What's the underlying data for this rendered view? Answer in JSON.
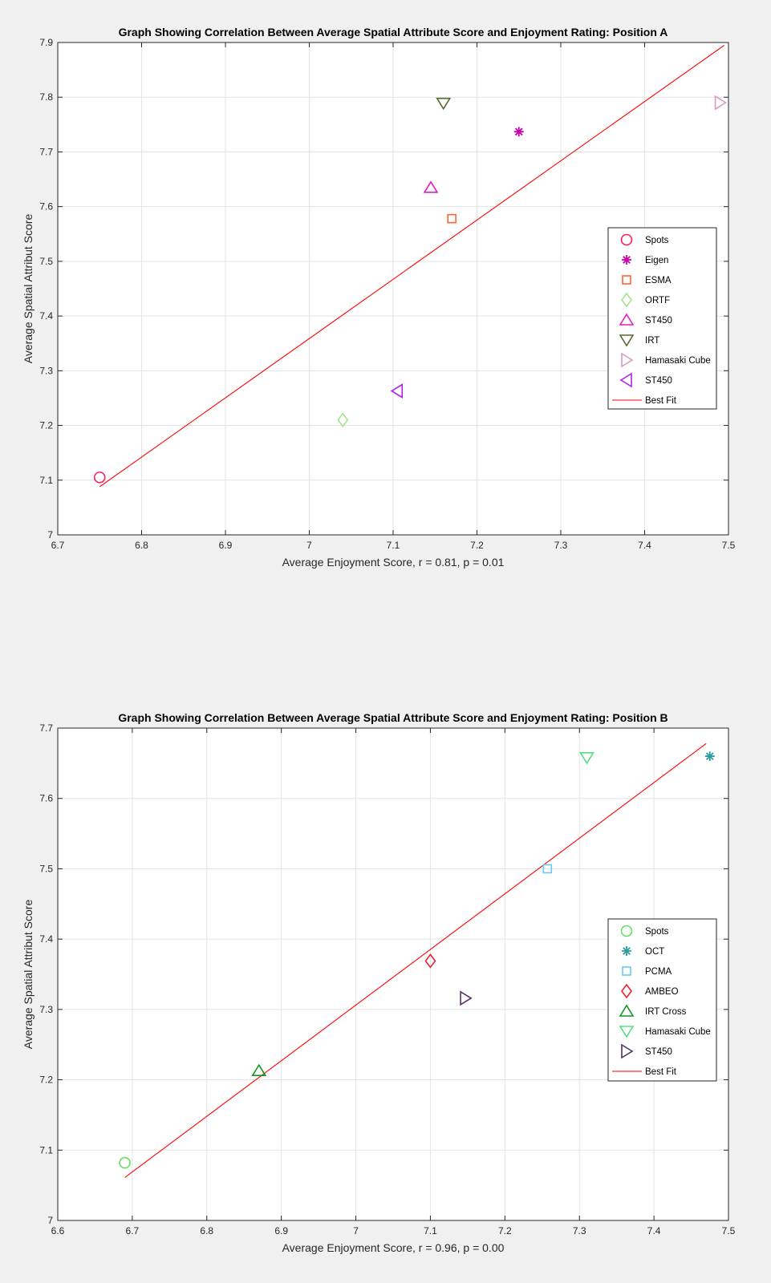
{
  "chart_data": [
    {
      "type": "scatter",
      "title": "Graph Showing Correlation Between Average Spatial Attribute Score and Enjoyment Rating: Position A",
      "xlabel": "Average Enjoyment Score, r = 0.81, p = 0.01",
      "ylabel": "Average Spatial Attribut Score",
      "xlim": [
        6.7,
        7.5
      ],
      "ylim": [
        7.0,
        7.9
      ],
      "xticks": [
        "6.7",
        "6.8",
        "6.9",
        "7",
        "7.1",
        "7.2",
        "7.3",
        "7.4",
        "7.5"
      ],
      "yticks": [
        "7",
        "7.1",
        "7.2",
        "7.3",
        "7.4",
        "7.5",
        "7.6",
        "7.7",
        "7.8",
        "7.9"
      ],
      "grid": true,
      "legend_position": "right",
      "series": [
        {
          "name": "Spots",
          "marker": "circle",
          "color": "#ff1f5b",
          "x": 6.75,
          "y": 7.105
        },
        {
          "name": "Eigen",
          "marker": "asterisk",
          "color": "#cc00aa",
          "x": 7.25,
          "y": 7.737
        },
        {
          "name": "ESMA",
          "marker": "square",
          "color": "#ff6633",
          "x": 7.17,
          "y": 7.578
        },
        {
          "name": "ORTF",
          "marker": "diamond",
          "color": "#a6e38f",
          "x": 7.04,
          "y": 7.21
        },
        {
          "name": "ST450",
          "marker": "triangle-up",
          "color": "#e020c0",
          "x": 7.145,
          "y": 7.635
        },
        {
          "name": "IRT",
          "marker": "triangle-down",
          "color": "#556b2f",
          "x": 7.16,
          "y": 7.789
        },
        {
          "name": "Hamasaki Cube",
          "marker": "triangle-right",
          "color": "#d99ac5",
          "x": 7.49,
          "y": 7.79
        },
        {
          "name": "ST450",
          "marker": "triangle-left",
          "color": "#b020f0",
          "x": 7.105,
          "y": 7.263
        }
      ],
      "best_fit": {
        "name": "Best Fit",
        "color": "#ff0000",
        "x": [
          6.75,
          7.495
        ],
        "y": [
          7.088,
          7.895
        ]
      }
    },
    {
      "type": "scatter",
      "title": "Graph Showing Correlation Between Average Spatial Attribute Score and Enjoyment Rating: Position B",
      "xlabel": "Average Enjoyment Score, r = 0.96, p = 0.00",
      "ylabel": "Average Spatial Attribut Score",
      "xlim": [
        6.6,
        7.5
      ],
      "ylim": [
        7.0,
        7.7
      ],
      "xticks": [
        "6.6",
        "6.7",
        "6.8",
        "6.9",
        "7",
        "7.1",
        "7.2",
        "7.3",
        "7.4",
        "7.5"
      ],
      "yticks": [
        "7",
        "7.1",
        "7.2",
        "7.3",
        "7.4",
        "7.5",
        "7.6",
        "7.7"
      ],
      "grid": true,
      "legend_position": "right",
      "series": [
        {
          "name": "Spots",
          "marker": "circle",
          "color": "#66dd66",
          "x": 6.69,
          "y": 7.082
        },
        {
          "name": "OCT",
          "marker": "asterisk",
          "color": "#2a9d9d",
          "x": 7.475,
          "y": 7.66
        },
        {
          "name": "PCMA",
          "marker": "square",
          "color": "#66ccee",
          "x": 7.257,
          "y": 7.5
        },
        {
          "name": "AMBEO",
          "marker": "diamond",
          "color": "#ee2233",
          "x": 7.1,
          "y": 7.369
        },
        {
          "name": "IRT Cross",
          "marker": "triangle-up",
          "color": "#119922",
          "x": 6.87,
          "y": 7.213
        },
        {
          "name": "Hamasaki Cube",
          "marker": "triangle-down",
          "color": "#55dd88",
          "x": 7.31,
          "y": 7.658
        },
        {
          "name": "ST450",
          "marker": "triangle-right",
          "color": "#553366",
          "x": 7.147,
          "y": 7.316
        }
      ],
      "best_fit": {
        "name": "Best Fit",
        "color": "#ff0000",
        "x": [
          6.69,
          7.47
        ],
        "y": [
          7.061,
          7.678
        ]
      }
    }
  ]
}
